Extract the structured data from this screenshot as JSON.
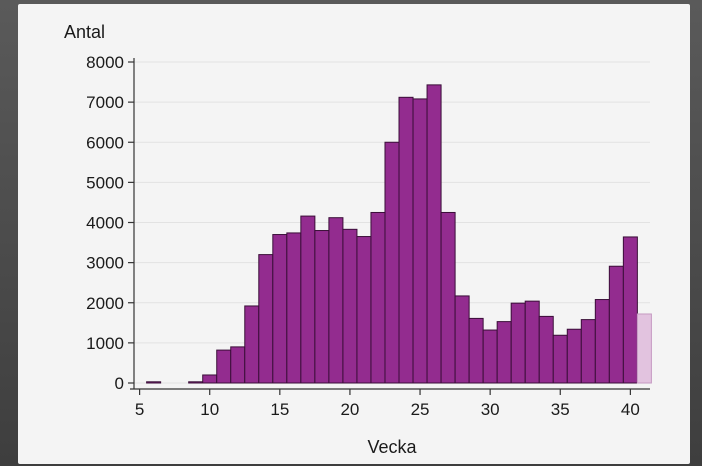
{
  "chart_data": {
    "type": "bar",
    "title": "",
    "ylabel": "Antal",
    "xlabel": "Vecka",
    "xlim": [
      4.6,
      41.4
    ],
    "ylim": [
      0,
      8000
    ],
    "xticks": [
      5,
      10,
      15,
      20,
      25,
      30,
      35,
      40
    ],
    "yticks": [
      0,
      1000,
      2000,
      3000,
      4000,
      5000,
      6000,
      7000,
      8000
    ],
    "grid": "horizontal",
    "colors": {
      "bar_fill": "#932c8f",
      "bar_stroke": "#3a0e38",
      "partial_bar_fill": "#e2c3df",
      "partial_bar_stroke": "#c59ac2",
      "grid": "#e2e2e2",
      "axis": "#333333"
    },
    "weeks": [
      6,
      9,
      10,
      11,
      12,
      13,
      14,
      15,
      16,
      17,
      18,
      19,
      20,
      21,
      22,
      23,
      24,
      25,
      26,
      27,
      28,
      29,
      30,
      31,
      32,
      33,
      34,
      35,
      36,
      37,
      38,
      39,
      40,
      41
    ],
    "values": [
      30,
      30,
      200,
      820,
      900,
      1920,
      3200,
      3700,
      3740,
      4160,
      3800,
      4120,
      3830,
      3650,
      4250,
      6000,
      7120,
      7080,
      7430,
      4250,
      2170,
      1610,
      1320,
      1530,
      1990,
      2040,
      1660,
      1190,
      1340,
      1580,
      2080,
      2910,
      3640,
      1720
    ],
    "partial": [
      false,
      false,
      false,
      false,
      false,
      false,
      false,
      false,
      false,
      false,
      false,
      false,
      false,
      false,
      false,
      false,
      false,
      false,
      false,
      false,
      false,
      false,
      false,
      false,
      false,
      false,
      false,
      false,
      false,
      false,
      false,
      false,
      false,
      true
    ]
  }
}
